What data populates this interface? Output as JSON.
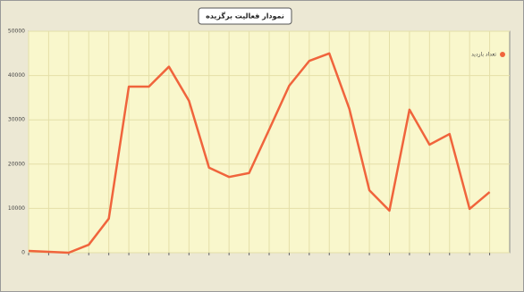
{
  "chart_data": {
    "type": "line",
    "title": "نمودار فعالیت برگزیده",
    "categories": [
      null,
      null,
      null,
      null,
      null,
      null,
      null,
      null,
      null,
      null,
      null,
      null,
      null,
      null,
      null,
      null,
      null,
      null,
      null,
      null,
      null,
      null,
      null,
      null
    ],
    "series": [
      {
        "name": "تعداد بازدید",
        "color": "#f0643c",
        "values": [
          400,
          200,
          0,
          1800,
          7700,
          37500,
          37500,
          42000,
          34300,
          19200,
          17100,
          18000,
          27800,
          37700,
          43300,
          45000,
          32500,
          14100,
          9500,
          32300,
          24400,
          26800,
          9900,
          13700
        ]
      }
    ],
    "ylim": [
      0,
      50000
    ],
    "yticks": [
      0,
      10000,
      20000,
      30000,
      40000,
      50000
    ],
    "grid": true,
    "legend": "top-right"
  }
}
